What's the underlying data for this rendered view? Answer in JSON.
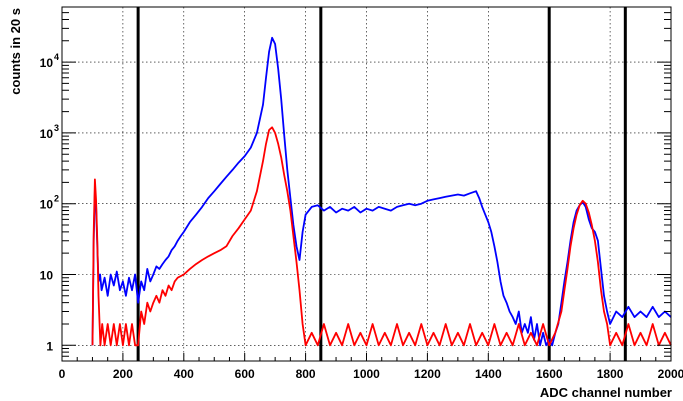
{
  "chart_data": {
    "type": "line",
    "xlabel": "ADC channel number",
    "ylabel": "counts in 20 s",
    "xlim": [
      0,
      2000
    ],
    "ylim": [
      0.6,
      60000
    ],
    "yscale": "log",
    "grid": true,
    "x_ticks": [
      0,
      200,
      400,
      600,
      800,
      1000,
      1200,
      1400,
      1600,
      1800,
      2000
    ],
    "y_ticks": [
      {
        "value": 1,
        "label": "1"
      },
      {
        "value": 10,
        "label": "10"
      },
      {
        "value": 100,
        "label": "10",
        "exp": "2"
      },
      {
        "value": 1000,
        "label": "10",
        "exp": "3"
      },
      {
        "value": 10000,
        "label": "10",
        "exp": "4"
      }
    ],
    "vertical_lines": [
      250,
      850,
      1600,
      1850
    ],
    "series": [
      {
        "color": "#0000ff",
        "points": [
          [
            100,
            1
          ],
          [
            104,
            30
          ],
          [
            108,
            150
          ],
          [
            112,
            90
          ],
          [
            116,
            25
          ],
          [
            120,
            8
          ],
          [
            125,
            10
          ],
          [
            130,
            6
          ],
          [
            140,
            9
          ],
          [
            150,
            5
          ],
          [
            160,
            10
          ],
          [
            170,
            7
          ],
          [
            180,
            11
          ],
          [
            190,
            6
          ],
          [
            200,
            8
          ],
          [
            210,
            5
          ],
          [
            220,
            9
          ],
          [
            230,
            6
          ],
          [
            240,
            10
          ],
          [
            250,
            4
          ],
          [
            260,
            8
          ],
          [
            270,
            6
          ],
          [
            280,
            12
          ],
          [
            290,
            8
          ],
          [
            300,
            10
          ],
          [
            310,
            13
          ],
          [
            320,
            12
          ],
          [
            330,
            14
          ],
          [
            340,
            16
          ],
          [
            350,
            18
          ],
          [
            360,
            22
          ],
          [
            370,
            25
          ],
          [
            380,
            30
          ],
          [
            390,
            35
          ],
          [
            400,
            40
          ],
          [
            420,
            55
          ],
          [
            440,
            70
          ],
          [
            460,
            90
          ],
          [
            480,
            120
          ],
          [
            500,
            150
          ],
          [
            520,
            190
          ],
          [
            540,
            240
          ],
          [
            560,
            300
          ],
          [
            580,
            380
          ],
          [
            600,
            470
          ],
          [
            620,
            620
          ],
          [
            640,
            1000
          ],
          [
            660,
            2500
          ],
          [
            670,
            6000
          ],
          [
            680,
            14000
          ],
          [
            690,
            22000
          ],
          [
            700,
            18000
          ],
          [
            710,
            8000
          ],
          [
            720,
            3000
          ],
          [
            730,
            900
          ],
          [
            740,
            300
          ],
          [
            750,
            120
          ],
          [
            760,
            50
          ],
          [
            770,
            25
          ],
          [
            780,
            16
          ],
          [
            790,
            40
          ],
          [
            800,
            70
          ],
          [
            820,
            90
          ],
          [
            840,
            95
          ],
          [
            860,
            80
          ],
          [
            880,
            90
          ],
          [
            900,
            75
          ],
          [
            920,
            85
          ],
          [
            940,
            80
          ],
          [
            960,
            90
          ],
          [
            980,
            75
          ],
          [
            1000,
            85
          ],
          [
            1020,
            80
          ],
          [
            1040,
            90
          ],
          [
            1060,
            85
          ],
          [
            1080,
            80
          ],
          [
            1100,
            90
          ],
          [
            1120,
            95
          ],
          [
            1140,
            100
          ],
          [
            1160,
            95
          ],
          [
            1180,
            100
          ],
          [
            1200,
            110
          ],
          [
            1220,
            115
          ],
          [
            1240,
            120
          ],
          [
            1260,
            125
          ],
          [
            1280,
            130
          ],
          [
            1300,
            135
          ],
          [
            1320,
            130
          ],
          [
            1340,
            140
          ],
          [
            1360,
            150
          ],
          [
            1370,
            120
          ],
          [
            1380,
            90
          ],
          [
            1390,
            70
          ],
          [
            1400,
            55
          ],
          [
            1410,
            40
          ],
          [
            1420,
            25
          ],
          [
            1430,
            15
          ],
          [
            1440,
            8
          ],
          [
            1450,
            5
          ],
          [
            1460,
            4
          ],
          [
            1470,
            3
          ],
          [
            1480,
            2.5
          ],
          [
            1490,
            2
          ],
          [
            1500,
            3
          ],
          [
            1510,
            1.5
          ],
          [
            1520,
            2
          ],
          [
            1530,
            1.5
          ],
          [
            1540,
            2.5
          ],
          [
            1550,
            1.2
          ],
          [
            1560,
            2
          ],
          [
            1570,
            1
          ],
          [
            1580,
            1.5
          ],
          [
            1590,
            1
          ],
          [
            1600,
            1.2
          ],
          [
            1610,
            1
          ],
          [
            1620,
            1.5
          ],
          [
            1630,
            2
          ],
          [
            1640,
            4
          ],
          [
            1650,
            8
          ],
          [
            1660,
            15
          ],
          [
            1670,
            30
          ],
          [
            1680,
            55
          ],
          [
            1690,
            80
          ],
          [
            1700,
            95
          ],
          [
            1710,
            105
          ],
          [
            1720,
            90
          ],
          [
            1730,
            60
          ],
          [
            1740,
            45
          ],
          [
            1750,
            40
          ],
          [
            1760,
            30
          ],
          [
            1770,
            12
          ],
          [
            1780,
            5
          ],
          [
            1790,
            3
          ],
          [
            1800,
            2
          ],
          [
            1820,
            3
          ],
          [
            1840,
            2.5
          ],
          [
            1860,
            3.5
          ],
          [
            1880,
            2.5
          ],
          [
            1900,
            3
          ],
          [
            1920,
            2.5
          ],
          [
            1940,
            3.5
          ],
          [
            1960,
            2.5
          ],
          [
            1980,
            3
          ],
          [
            2000,
            2.5
          ]
        ]
      },
      {
        "color": "#ff0000",
        "points": [
          [
            100,
            1
          ],
          [
            104,
            40
          ],
          [
            108,
            220
          ],
          [
            112,
            110
          ],
          [
            116,
            30
          ],
          [
            120,
            5
          ],
          [
            126,
            1
          ],
          [
            132,
            2
          ],
          [
            140,
            1
          ],
          [
            150,
            2
          ],
          [
            160,
            1
          ],
          [
            170,
            2
          ],
          [
            180,
            1
          ],
          [
            190,
            2
          ],
          [
            200,
            1
          ],
          [
            210,
            2
          ],
          [
            220,
            1
          ],
          [
            230,
            2
          ],
          [
            240,
            1
          ],
          [
            250,
            1
          ],
          [
            260,
            3
          ],
          [
            270,
            2
          ],
          [
            280,
            4
          ],
          [
            290,
            3
          ],
          [
            300,
            4
          ],
          [
            310,
            5
          ],
          [
            320,
            4
          ],
          [
            330,
            6
          ],
          [
            340,
            5
          ],
          [
            350,
            7
          ],
          [
            360,
            6
          ],
          [
            370,
            8
          ],
          [
            380,
            9
          ],
          [
            400,
            10
          ],
          [
            420,
            12
          ],
          [
            440,
            14
          ],
          [
            460,
            16
          ],
          [
            480,
            18
          ],
          [
            500,
            20
          ],
          [
            520,
            22
          ],
          [
            540,
            25
          ],
          [
            560,
            35
          ],
          [
            580,
            45
          ],
          [
            600,
            60
          ],
          [
            620,
            80
          ],
          [
            640,
            150
          ],
          [
            660,
            400
          ],
          [
            670,
            700
          ],
          [
            680,
            1100
          ],
          [
            690,
            1200
          ],
          [
            700,
            1000
          ],
          [
            710,
            700
          ],
          [
            720,
            450
          ],
          [
            730,
            250
          ],
          [
            740,
            150
          ],
          [
            750,
            80
          ],
          [
            760,
            35
          ],
          [
            770,
            15
          ],
          [
            780,
            6
          ],
          [
            790,
            2
          ],
          [
            800,
            1
          ],
          [
            820,
            1.5
          ],
          [
            840,
            1
          ],
          [
            860,
            2
          ],
          [
            880,
            1
          ],
          [
            900,
            1.5
          ],
          [
            920,
            1
          ],
          [
            940,
            2
          ],
          [
            960,
            1
          ],
          [
            980,
            1.5
          ],
          [
            1000,
            1
          ],
          [
            1020,
            2
          ],
          [
            1040,
            1
          ],
          [
            1060,
            1.5
          ],
          [
            1080,
            1
          ],
          [
            1100,
            2
          ],
          [
            1120,
            1
          ],
          [
            1140,
            1.5
          ],
          [
            1160,
            1
          ],
          [
            1180,
            2
          ],
          [
            1200,
            1
          ],
          [
            1220,
            1.5
          ],
          [
            1240,
            1
          ],
          [
            1260,
            2
          ],
          [
            1280,
            1
          ],
          [
            1300,
            1.5
          ],
          [
            1320,
            1
          ],
          [
            1340,
            2
          ],
          [
            1360,
            1
          ],
          [
            1380,
            1.5
          ],
          [
            1400,
            1
          ],
          [
            1420,
            2
          ],
          [
            1440,
            1
          ],
          [
            1460,
            1.5
          ],
          [
            1480,
            1
          ],
          [
            1500,
            2
          ],
          [
            1520,
            1
          ],
          [
            1540,
            1.5
          ],
          [
            1560,
            1
          ],
          [
            1580,
            2
          ],
          [
            1600,
            1
          ],
          [
            1620,
            1.5
          ],
          [
            1640,
            3
          ],
          [
            1650,
            6
          ],
          [
            1660,
            12
          ],
          [
            1670,
            25
          ],
          [
            1680,
            45
          ],
          [
            1690,
            70
          ],
          [
            1700,
            95
          ],
          [
            1710,
            110
          ],
          [
            1720,
            100
          ],
          [
            1730,
            75
          ],
          [
            1740,
            50
          ],
          [
            1750,
            30
          ],
          [
            1760,
            15
          ],
          [
            1770,
            6
          ],
          [
            1780,
            3
          ],
          [
            1790,
            2
          ],
          [
            1800,
            1
          ],
          [
            1820,
            1.5
          ],
          [
            1840,
            1
          ],
          [
            1860,
            2
          ],
          [
            1880,
            1
          ],
          [
            1900,
            1.5
          ],
          [
            1920,
            1
          ],
          [
            1940,
            2
          ],
          [
            1960,
            1
          ],
          [
            1980,
            1.5
          ],
          [
            2000,
            1
          ]
        ]
      }
    ]
  }
}
